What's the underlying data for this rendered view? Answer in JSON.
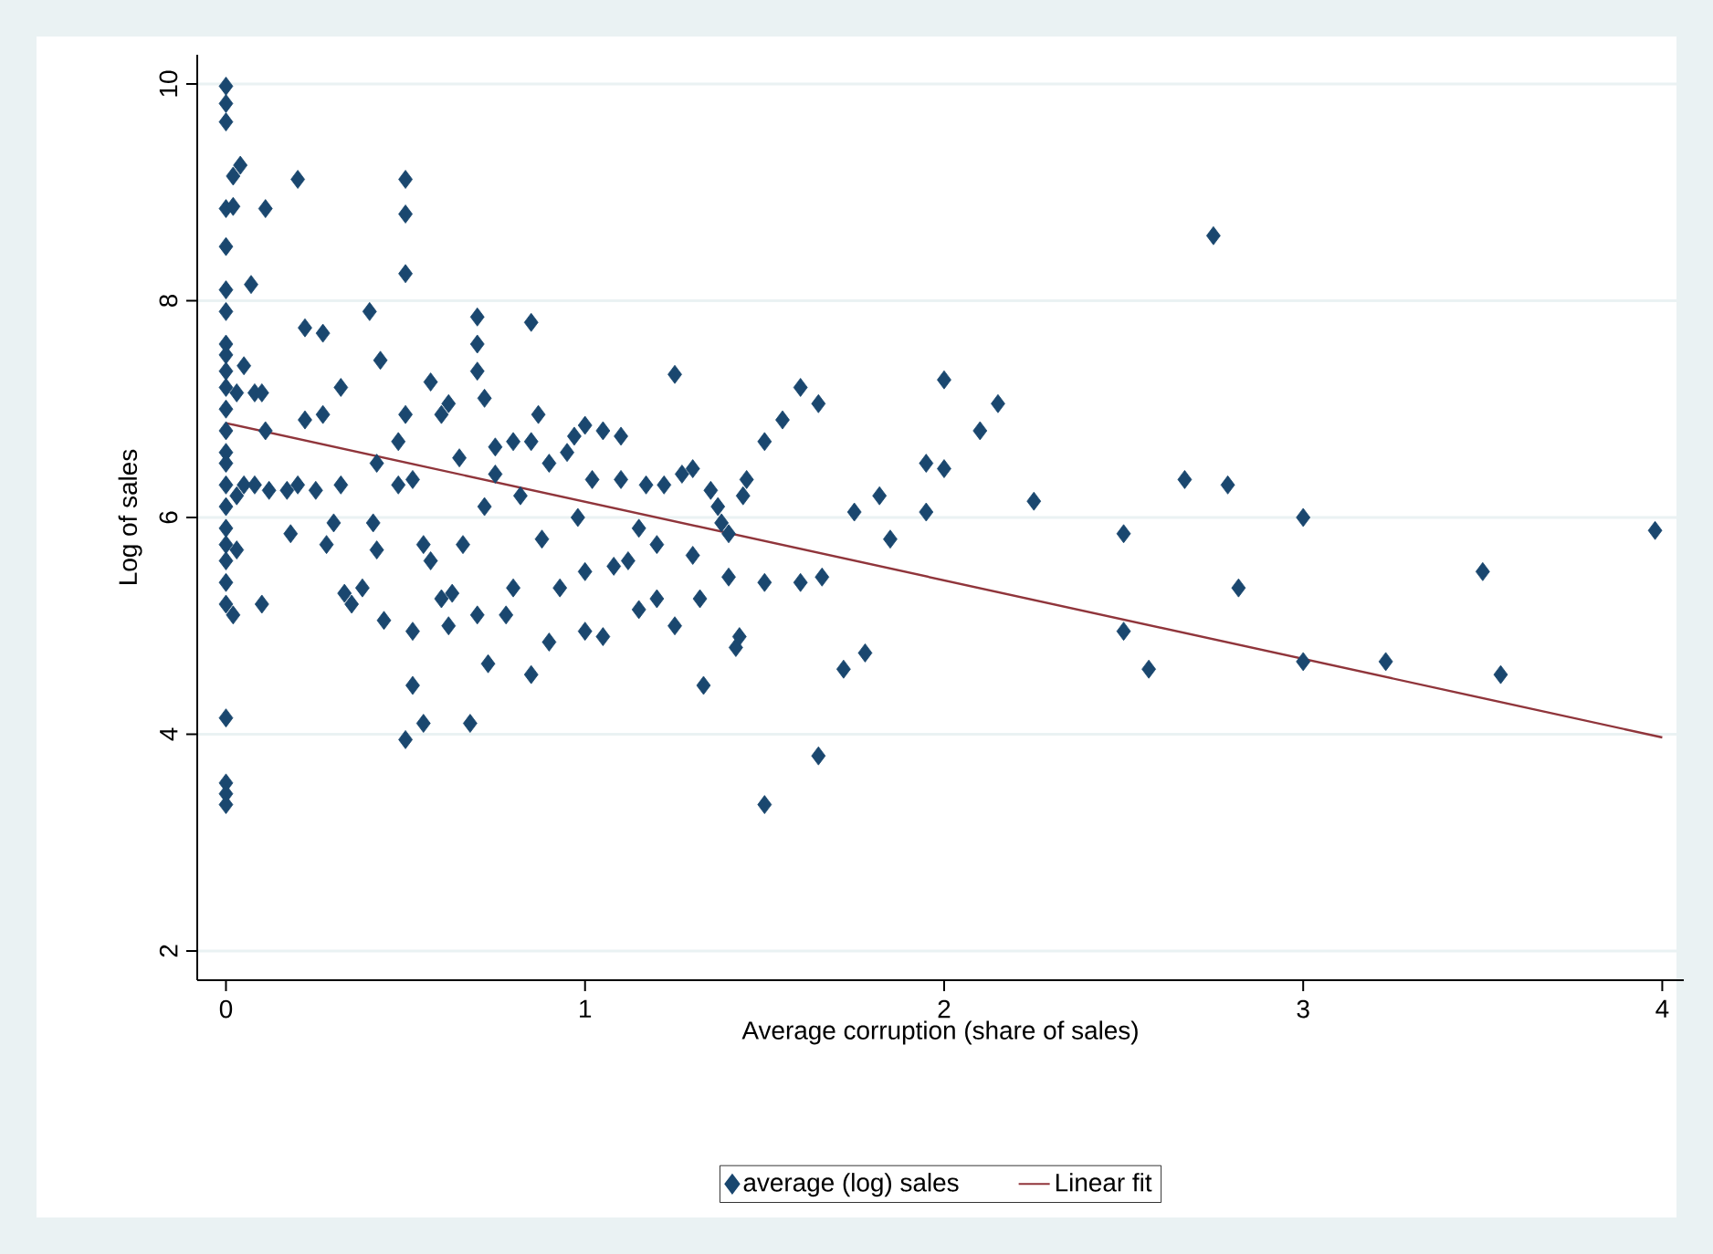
{
  "chart_data": {
    "type": "scatter",
    "xlabel": "Average corruption (share of sales)",
    "ylabel": "Log of sales",
    "xlim": [
      -0.08,
      4.06
    ],
    "ylim": [
      1.73,
      10.27
    ],
    "xticks": [
      0,
      1,
      2,
      3,
      4
    ],
    "yticks": [
      2,
      4,
      6,
      8,
      10
    ],
    "grid": "y",
    "legend": "bottom",
    "series": [
      {
        "name": "average (log) sales",
        "marker": "diamond",
        "color": "#1a476f",
        "x": [
          0,
          0,
          0,
          0,
          0,
          0,
          0,
          0,
          0,
          0,
          0,
          0,
          0,
          0,
          0,
          0,
          0,
          0,
          0,
          0,
          0,
          0,
          0,
          0,
          0,
          0,
          0.02,
          0.04,
          0.02,
          0.07,
          0.05,
          0.03,
          0.08,
          0.1,
          0.05,
          0.03,
          0.08,
          0.02,
          0.03,
          0.1,
          0.12,
          0.11,
          0.11,
          0.2,
          0.17,
          0.18,
          0.2,
          0.22,
          0.22,
          0.27,
          0.27,
          0.25,
          0.28,
          0.3,
          0.32,
          0.32,
          0.33,
          0.35,
          0.38,
          0.4,
          0.42,
          0.41,
          0.42,
          0.43,
          0.44,
          0.48,
          0.48,
          0.5,
          0.5,
          0.5,
          0.5,
          0.5,
          0.52,
          0.52,
          0.52,
          0.55,
          0.55,
          0.57,
          0.57,
          0.6,
          0.6,
          0.62,
          0.62,
          0.63,
          0.65,
          0.66,
          0.68,
          0.7,
          0.7,
          0.7,
          0.72,
          0.72,
          0.7,
          0.73,
          0.75,
          0.75,
          0.78,
          0.8,
          0.8,
          0.82,
          0.85,
          0.85,
          0.85,
          0.87,
          0.88,
          0.9,
          0.9,
          0.93,
          0.95,
          0.97,
          0.98,
          1.0,
          1.0,
          1.0,
          1.02,
          1.05,
          1.05,
          1.08,
          1.1,
          1.1,
          1.12,
          1.15,
          1.15,
          1.17,
          1.2,
          1.2,
          1.22,
          1.25,
          1.27,
          1.25,
          1.3,
          1.3,
          1.32,
          1.33,
          1.35,
          1.37,
          1.38,
          1.4,
          1.4,
          1.42,
          1.43,
          1.6,
          1.65,
          1.5,
          1.55,
          1.44,
          1.45,
          1.75,
          1.82,
          1.85,
          1.95,
          1.95,
          2.0,
          2.0,
          2.1,
          2.15,
          2.25,
          2.5,
          2.5,
          2.57,
          2.67,
          2.75,
          2.79,
          2.82,
          3.0,
          3.0,
          3.23,
          3.5,
          3.55,
          3.98,
          1.72,
          1.78,
          1.65,
          1.5,
          1.6,
          1.66,
          1.5
        ],
        "values": [
          9.98,
          9.82,
          9.65,
          8.85,
          8.5,
          8.1,
          7.9,
          7.6,
          7.5,
          7.35,
          7.2,
          7.0,
          6.8,
          6.6,
          6.5,
          6.3,
          6.1,
          5.9,
          5.75,
          5.6,
          5.4,
          5.2,
          4.15,
          3.55,
          3.45,
          3.35,
          9.15,
          9.25,
          8.87,
          8.15,
          7.4,
          7.15,
          7.15,
          7.15,
          6.3,
          6.2,
          6.3,
          5.1,
          5.7,
          5.2,
          6.25,
          6.8,
          8.85,
          9.12,
          6.25,
          5.85,
          6.3,
          7.75,
          6.9,
          7.7,
          6.95,
          6.25,
          5.75,
          5.95,
          7.2,
          6.3,
          5.3,
          5.2,
          5.35,
          7.9,
          6.5,
          5.95,
          5.7,
          7.45,
          5.05,
          6.3,
          6.7,
          9.12,
          8.8,
          8.25,
          6.95,
          3.95,
          4.45,
          4.95,
          6.35,
          4.1,
          5.75,
          7.25,
          5.6,
          6.95,
          5.25,
          7.05,
          5.0,
          5.3,
          6.55,
          5.75,
          4.1,
          7.85,
          7.6,
          7.35,
          7.1,
          6.1,
          5.1,
          4.65,
          6.65,
          6.4,
          5.1,
          6.7,
          5.35,
          6.2,
          7.8,
          6.7,
          4.55,
          6.95,
          5.8,
          6.5,
          4.85,
          5.35,
          6.6,
          6.75,
          6.0,
          6.85,
          5.5,
          4.95,
          6.35,
          6.8,
          4.9,
          5.55,
          6.75,
          6.35,
          5.6,
          5.9,
          5.15,
          6.3,
          5.25,
          5.75,
          6.3,
          7.32,
          6.4,
          5.0,
          6.45,
          5.65,
          5.25,
          4.45,
          6.25,
          6.1,
          5.95,
          5.85,
          5.45,
          4.8,
          4.9,
          7.2,
          7.05,
          6.7,
          6.9,
          6.2,
          6.35,
          6.05,
          6.2,
          5.8,
          6.5,
          6.05,
          6.45,
          7.27,
          6.8,
          7.05,
          6.15,
          5.85,
          4.95,
          4.6,
          6.35,
          8.6,
          6.3,
          5.35,
          6.0,
          4.67,
          4.67,
          5.5,
          4.55,
          5.88,
          4.6,
          4.75,
          3.8,
          3.35,
          5.4,
          5.45,
          5.4
        ]
      },
      {
        "name": "Linear fit",
        "type": "line",
        "marker": "none",
        "line_style": "solid",
        "color": "#90353b",
        "x": [
          0,
          4
        ],
        "values": [
          6.87,
          3.97
        ]
      }
    ]
  }
}
